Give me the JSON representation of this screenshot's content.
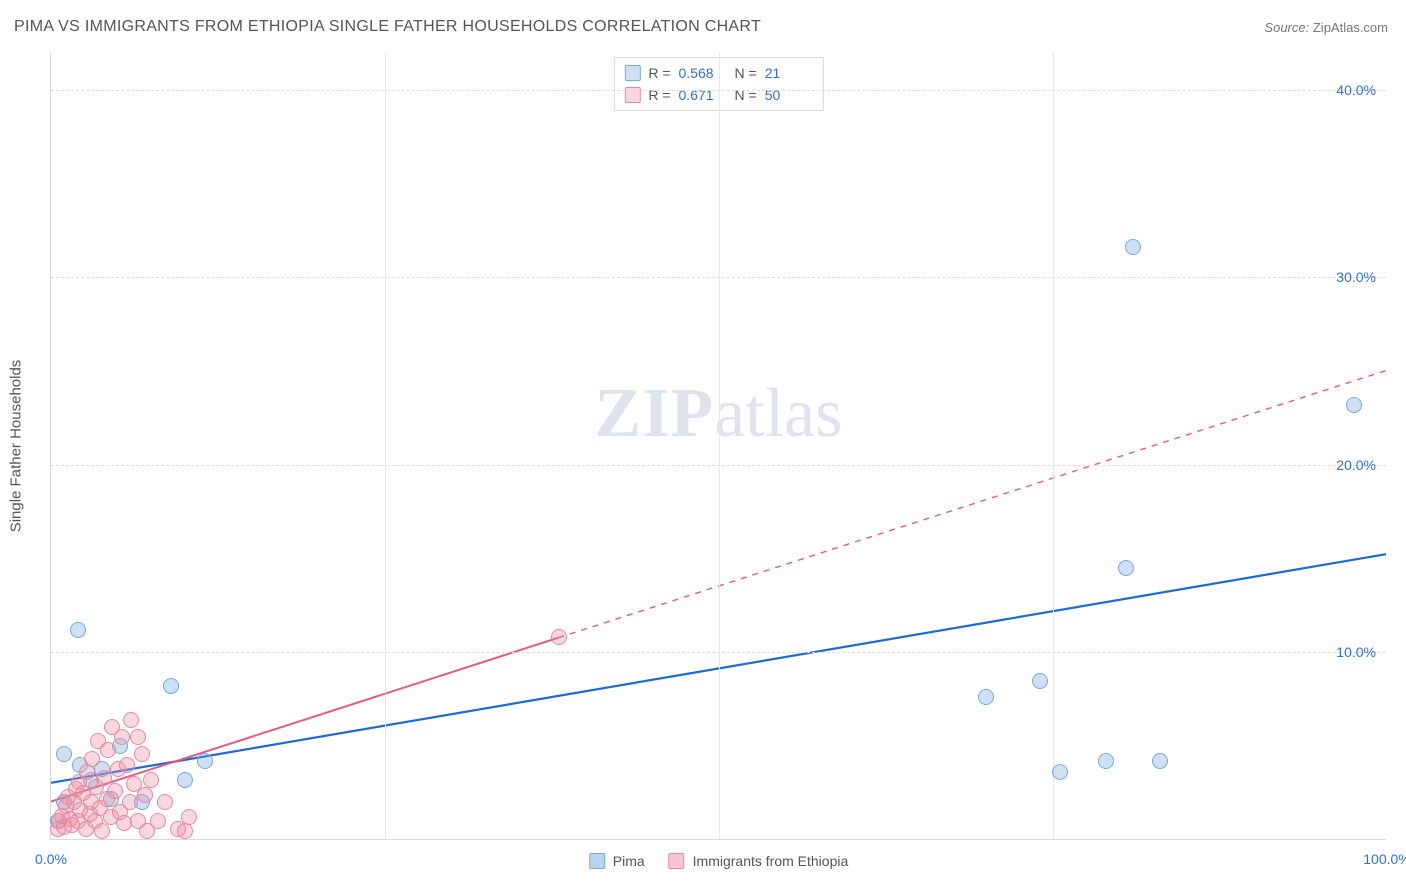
{
  "title": "PIMA VS IMMIGRANTS FROM ETHIOPIA SINGLE FATHER HOUSEHOLDS CORRELATION CHART",
  "source_label": "Source:",
  "source_value": "ZipAtlas.com",
  "watermark_zip": "ZIP",
  "watermark_atlas": "atlas",
  "y_axis_label": "Single Father Households",
  "chart": {
    "type": "scatter",
    "background_color": "#ffffff",
    "grid_color": "#dddddd",
    "axis_color": "#d9d9d9",
    "tick_label_color": "#2f6fd0",
    "xlim": [
      0,
      100
    ],
    "ylim": [
      0,
      42
    ],
    "yticks": [
      {
        "value": 10,
        "label": "10.0%"
      },
      {
        "value": 20,
        "label": "20.0%"
      },
      {
        "value": 30,
        "label": "30.0%"
      },
      {
        "value": 40,
        "label": "40.0%"
      }
    ],
    "xticks": [
      {
        "value": 0,
        "label": "0.0%"
      },
      {
        "value": 100,
        "label": "100.0%"
      }
    ],
    "x_gridlines": [
      25,
      50,
      75
    ],
    "marker_radius": 8,
    "marker_stroke_width": 1.5,
    "series": [
      {
        "name": "Pima",
        "color_fill": "rgba(116,168,222,0.35)",
        "color_stroke": "#7aa8d8",
        "tag": "pima",
        "stats": {
          "R_label": "R =",
          "R": "0.568",
          "N_label": "N =",
          "N": "21"
        },
        "regression": {
          "x1": 0,
          "y1": 3.0,
          "x2": 100,
          "y2": 15.2,
          "color": "#1f6bd6",
          "width": 2.2,
          "solid_until_x": 100
        },
        "points": [
          {
            "x": 2.0,
            "y": 11.2
          },
          {
            "x": 1.0,
            "y": 4.6
          },
          {
            "x": 2.2,
            "y": 4.0
          },
          {
            "x": 3.0,
            "y": 3.2
          },
          {
            "x": 3.8,
            "y": 3.8
          },
          {
            "x": 4.5,
            "y": 2.2
          },
          {
            "x": 5.2,
            "y": 5.0
          },
          {
            "x": 6.8,
            "y": 2.0
          },
          {
            "x": 9.0,
            "y": 8.2
          },
          {
            "x": 10.0,
            "y": 3.2
          },
          {
            "x": 11.5,
            "y": 4.2
          },
          {
            "x": 70.0,
            "y": 7.6
          },
          {
            "x": 74.0,
            "y": 8.5
          },
          {
            "x": 75.5,
            "y": 3.6
          },
          {
            "x": 79.0,
            "y": 4.2
          },
          {
            "x": 83.0,
            "y": 4.2
          },
          {
            "x": 80.5,
            "y": 14.5
          },
          {
            "x": 81.0,
            "y": 31.6
          },
          {
            "x": 97.5,
            "y": 23.2
          },
          {
            "x": 1.0,
            "y": 2.0
          },
          {
            "x": 0.5,
            "y": 1.0
          }
        ]
      },
      {
        "name": "Immigrants from Ethiopia",
        "color_fill": "rgba(242,140,164,0.35)",
        "color_stroke": "#e38aa0",
        "tag": "ethiopia",
        "stats": {
          "R_label": "R =",
          "R": "0.671",
          "N_label": "N =",
          "N": "50"
        },
        "regression": {
          "x1": 0,
          "y1": 2.0,
          "x2": 100,
          "y2": 25.0,
          "color": "#e35b7d",
          "width": 2.0,
          "solid_until_x": 38
        },
        "points": [
          {
            "x": 0.5,
            "y": 0.6
          },
          {
            "x": 0.6,
            "y": 1.0
          },
          {
            "x": 0.8,
            "y": 1.3
          },
          {
            "x": 1.0,
            "y": 0.7
          },
          {
            "x": 1.1,
            "y": 1.8
          },
          {
            "x": 1.3,
            "y": 2.3
          },
          {
            "x": 1.4,
            "y": 1.1
          },
          {
            "x": 1.6,
            "y": 0.8
          },
          {
            "x": 1.7,
            "y": 2.0
          },
          {
            "x": 1.9,
            "y": 2.7
          },
          {
            "x": 2.0,
            "y": 1.0
          },
          {
            "x": 2.1,
            "y": 3.1
          },
          {
            "x": 2.2,
            "y": 1.6
          },
          {
            "x": 2.4,
            "y": 2.5
          },
          {
            "x": 2.6,
            "y": 0.6
          },
          {
            "x": 2.7,
            "y": 3.6
          },
          {
            "x": 2.9,
            "y": 1.4
          },
          {
            "x": 3.0,
            "y": 2.0
          },
          {
            "x": 3.1,
            "y": 4.3
          },
          {
            "x": 3.3,
            "y": 1.0
          },
          {
            "x": 3.4,
            "y": 2.8
          },
          {
            "x": 3.5,
            "y": 5.3
          },
          {
            "x": 3.7,
            "y": 1.7
          },
          {
            "x": 3.8,
            "y": 0.5
          },
          {
            "x": 4.0,
            "y": 3.3
          },
          {
            "x": 4.2,
            "y": 2.2
          },
          {
            "x": 4.3,
            "y": 4.8
          },
          {
            "x": 4.5,
            "y": 1.2
          },
          {
            "x": 4.6,
            "y": 6.0
          },
          {
            "x": 4.8,
            "y": 2.6
          },
          {
            "x": 5.0,
            "y": 3.8
          },
          {
            "x": 5.2,
            "y": 1.5
          },
          {
            "x": 5.3,
            "y": 5.5
          },
          {
            "x": 5.5,
            "y": 0.9
          },
          {
            "x": 5.7,
            "y": 4.0
          },
          {
            "x": 5.9,
            "y": 2.0
          },
          {
            "x": 6.0,
            "y": 6.4
          },
          {
            "x": 6.2,
            "y": 3.0
          },
          {
            "x": 6.5,
            "y": 1.0
          },
          {
            "x": 6.8,
            "y": 4.6
          },
          {
            "x": 7.0,
            "y": 2.4
          },
          {
            "x": 7.2,
            "y": 0.5
          },
          {
            "x": 7.5,
            "y": 3.2
          },
          {
            "x": 8.0,
            "y": 1.0
          },
          {
            "x": 8.5,
            "y": 2.0
          },
          {
            "x": 9.5,
            "y": 0.6
          },
          {
            "x": 10.3,
            "y": 1.2
          },
          {
            "x": 10.0,
            "y": 0.5
          },
          {
            "x": 38.0,
            "y": 10.8
          },
          {
            "x": 6.5,
            "y": 5.5
          }
        ]
      }
    ],
    "legend_series": [
      {
        "swatch_fill": "rgba(116,168,222,0.5)",
        "swatch_stroke": "#7aa8d8",
        "label": "Pima"
      },
      {
        "swatch_fill": "rgba(242,140,164,0.5)",
        "swatch_stroke": "#e38aa0",
        "label": "Immigrants from Ethiopia"
      }
    ]
  }
}
